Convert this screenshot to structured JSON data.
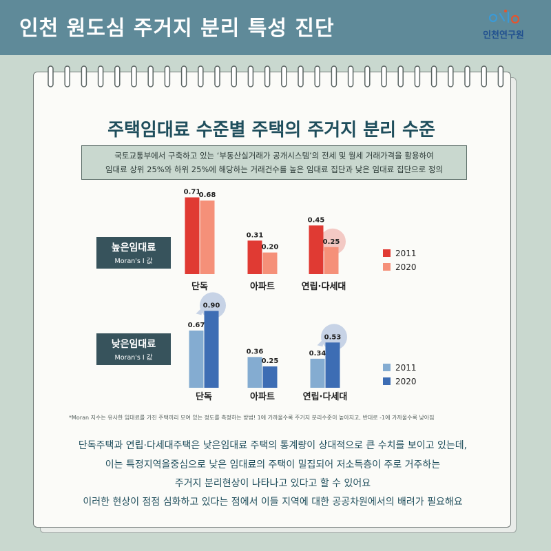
{
  "header": {
    "title": "인천 원도심 주거지 분리 특성 진단",
    "logo_text": "인천연구원"
  },
  "chart_title": "주택임대료 수준별 주택의 주거지 분리 수준",
  "definition": [
    "국토교통부에서 구축하고 있는 ‘부동산실거래가 공개시스템’의 전세 및 월세 거래가격을 활용하여",
    "임대료 상위 25%와 하위 25%에 해당하는 거래건수를 높은 임대료 집단과 낮은 임대료 집단으로 정의"
  ],
  "colors": {
    "high_2011": "#e03a33",
    "high_2020": "#f59079",
    "low_2011": "#84acd1",
    "low_2020": "#3d6db4",
    "highlight_high": "#f3c9c4",
    "highlight_low": "#c7d3e6"
  },
  "chart_data": [
    {
      "type": "bar",
      "group_label": "높은임대료",
      "group_sub": "Moran's I 값",
      "categories": [
        "단독",
        "아파트",
        "연립·다세대"
      ],
      "series": [
        {
          "name": "2011",
          "values": [
            0.71,
            0.31,
            0.45
          ],
          "labels": [
            "0.71",
            "0.31",
            "0.45"
          ]
        },
        {
          "name": "2020",
          "values": [
            0.68,
            0.2,
            0.25
          ],
          "labels": [
            "0.68",
            "0.20",
            "0.25"
          ]
        }
      ],
      "highlight": [
        {
          "category": 2,
          "series": 1
        }
      ],
      "ylim": [
        0,
        0.8
      ]
    },
    {
      "type": "bar",
      "group_label": "낮은임대료",
      "group_sub": "Moran's I 값",
      "categories": [
        "단독",
        "아파트",
        "연립·다세대"
      ],
      "series": [
        {
          "name": "2011",
          "values": [
            0.67,
            0.36,
            0.34
          ],
          "labels": [
            "0.67",
            "0.36",
            "0.34"
          ]
        },
        {
          "name": "2020",
          "values": [
            0.9,
            0.25,
            0.53
          ],
          "labels": [
            "0.90",
            "0.25",
            "0.53"
          ]
        }
      ],
      "highlight": [
        {
          "category": 0,
          "series": 1
        },
        {
          "category": 2,
          "series": 1
        }
      ],
      "ylim": [
        0,
        1.0
      ]
    }
  ],
  "footnote": "*Moran 지수는 유사한 임대료를 가진 주택끼리 모여 있는 정도를 측정하는 방법! 1에 가까울수록 주거지 분리수준이 높아지고, 반대로 -1에 가까울수록 낮아짐",
  "conclusion": [
    "단독주택과 연립·다세대주택은 낮은임대료 주택의 통계량이 상대적으로 큰 수치를 보이고 있는데,",
    "이는 특정지역을중심으로 낮은 임대료의 주택이 밀집되어 저소득층이 주로 거주하는",
    "주거지 분리현상이 나타나고 있다고 할 수 있어요",
    "이러한 현상이 점점 심화하고 있다는 점에서 이들 지역에 대한 공공차원에서의 배려가 필요해요"
  ]
}
